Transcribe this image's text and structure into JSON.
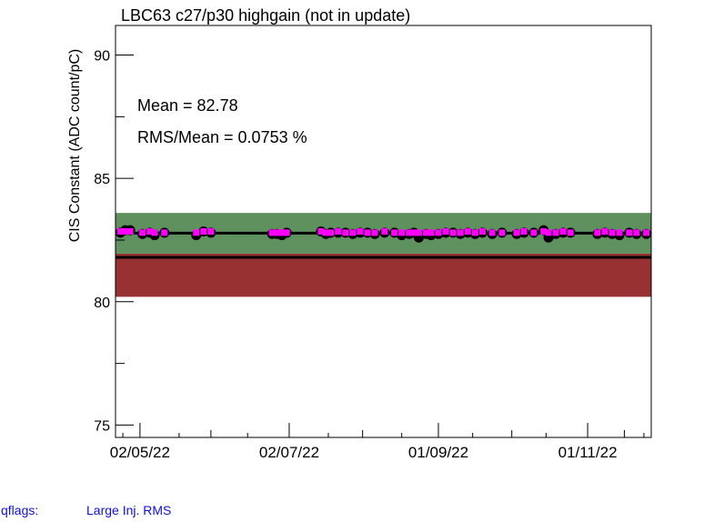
{
  "chart_data": {
    "type": "scatter",
    "title": "LBC63 c27/p30 highgain (not in update)",
    "ylabel": "CIS Constant (ADC count/pC)",
    "xlabel": "",
    "ylim": [
      74.5,
      91.2
    ],
    "xlim": [
      "2022-04-22",
      "2022-11-27"
    ],
    "y_ticks": [
      75,
      80,
      85,
      90
    ],
    "x_ticks": [
      {
        "label": "02/05/22",
        "date": "2022-05-02"
      },
      {
        "label": "02/07/22",
        "date": "2022-07-02"
      },
      {
        "label": "01/09/22",
        "date": "2022-09-01"
      },
      {
        "label": "01/11/22",
        "date": "2022-11-01"
      }
    ],
    "mean": 82.78,
    "green_band": [
      81.95,
      83.6
    ],
    "red_band": [
      80.2,
      81.95
    ],
    "reference_line": 81.8,
    "series": [
      {
        "color": "#000000",
        "marker": "circle",
        "dates": [
          "2022-04-24",
          "2022-04-26",
          "2022-04-28",
          "2022-05-03",
          "2022-05-06",
          "2022-05-08",
          "2022-05-12",
          "2022-05-25",
          "2022-05-28",
          "2022-05-31",
          "2022-06-25",
          "2022-06-27",
          "2022-06-29",
          "2022-07-01",
          "2022-07-15",
          "2022-07-17",
          "2022-07-19",
          "2022-07-22",
          "2022-07-25",
          "2022-07-28",
          "2022-07-31",
          "2022-08-03",
          "2022-08-06",
          "2022-08-10",
          "2022-08-14",
          "2022-08-17",
          "2022-08-20",
          "2022-08-22",
          "2022-08-24",
          "2022-08-27",
          "2022-08-29",
          "2022-09-01",
          "2022-09-04",
          "2022-09-07",
          "2022-09-10",
          "2022-09-13",
          "2022-09-16",
          "2022-09-19",
          "2022-09-23",
          "2022-09-27",
          "2022-10-03",
          "2022-10-06",
          "2022-10-10",
          "2022-10-14",
          "2022-10-16",
          "2022-10-19",
          "2022-10-22",
          "2022-10-25",
          "2022-11-05",
          "2022-11-08",
          "2022-11-11",
          "2022-11-14",
          "2022-11-18",
          "2022-11-21",
          "2022-11-25"
        ],
        "values": [
          82.8,
          82.9,
          82.9,
          82.75,
          82.8,
          82.7,
          82.8,
          82.7,
          82.85,
          82.8,
          82.75,
          82.75,
          82.7,
          82.8,
          82.85,
          82.75,
          82.8,
          82.8,
          82.8,
          82.75,
          82.8,
          82.8,
          82.75,
          82.8,
          82.8,
          82.7,
          82.75,
          82.8,
          82.6,
          82.75,
          82.7,
          82.75,
          82.8,
          82.8,
          82.75,
          82.8,
          82.75,
          82.8,
          82.75,
          82.8,
          82.75,
          82.8,
          82.8,
          82.9,
          82.6,
          82.75,
          82.8,
          82.8,
          82.75,
          82.8,
          82.75,
          82.7,
          82.8,
          82.75,
          82.75
        ]
      },
      {
        "color": "#ff00ff",
        "marker": "square",
        "dates": [
          "2022-04-24",
          "2022-04-26",
          "2022-04-28",
          "2022-05-03",
          "2022-05-06",
          "2022-05-08",
          "2022-05-12",
          "2022-05-25",
          "2022-05-28",
          "2022-05-31",
          "2022-06-25",
          "2022-06-27",
          "2022-06-29",
          "2022-07-01",
          "2022-07-15",
          "2022-07-17",
          "2022-07-19",
          "2022-07-22",
          "2022-07-25",
          "2022-07-28",
          "2022-07-31",
          "2022-08-03",
          "2022-08-06",
          "2022-08-10",
          "2022-08-14",
          "2022-08-17",
          "2022-08-20",
          "2022-08-22",
          "2022-08-24",
          "2022-08-27",
          "2022-08-29",
          "2022-09-01",
          "2022-09-04",
          "2022-09-07",
          "2022-09-10",
          "2022-09-13",
          "2022-09-16",
          "2022-09-19",
          "2022-09-23",
          "2022-09-27",
          "2022-10-03",
          "2022-10-06",
          "2022-10-10",
          "2022-10-14",
          "2022-10-16",
          "2022-10-19",
          "2022-10-22",
          "2022-10-25",
          "2022-11-05",
          "2022-11-08",
          "2022-11-11",
          "2022-11-14",
          "2022-11-18",
          "2022-11-21",
          "2022-11-25"
        ],
        "values": [
          82.85,
          82.85,
          82.85,
          82.8,
          82.85,
          82.8,
          82.8,
          82.8,
          82.85,
          82.85,
          82.8,
          82.8,
          82.8,
          82.8,
          82.85,
          82.8,
          82.8,
          82.85,
          82.8,
          82.8,
          82.85,
          82.8,
          82.8,
          82.85,
          82.8,
          82.8,
          82.8,
          82.8,
          82.8,
          82.8,
          82.8,
          82.8,
          82.85,
          82.8,
          82.8,
          82.85,
          82.8,
          82.85,
          82.8,
          82.8,
          82.8,
          82.85,
          82.8,
          82.85,
          82.8,
          82.8,
          82.85,
          82.8,
          82.8,
          82.85,
          82.8,
          82.8,
          82.8,
          82.8,
          82.8
        ]
      }
    ],
    "annotations": [
      "Mean = 82.78",
      "RMS/Mean = 0.0753 %"
    ],
    "colors": {
      "green_band": "#5f915f",
      "red_band": "#983232",
      "qflags_text": "#1010d8"
    }
  },
  "footer": {
    "qflags_label": "qflags:",
    "qflags_value": "Large Inj. RMS"
  }
}
